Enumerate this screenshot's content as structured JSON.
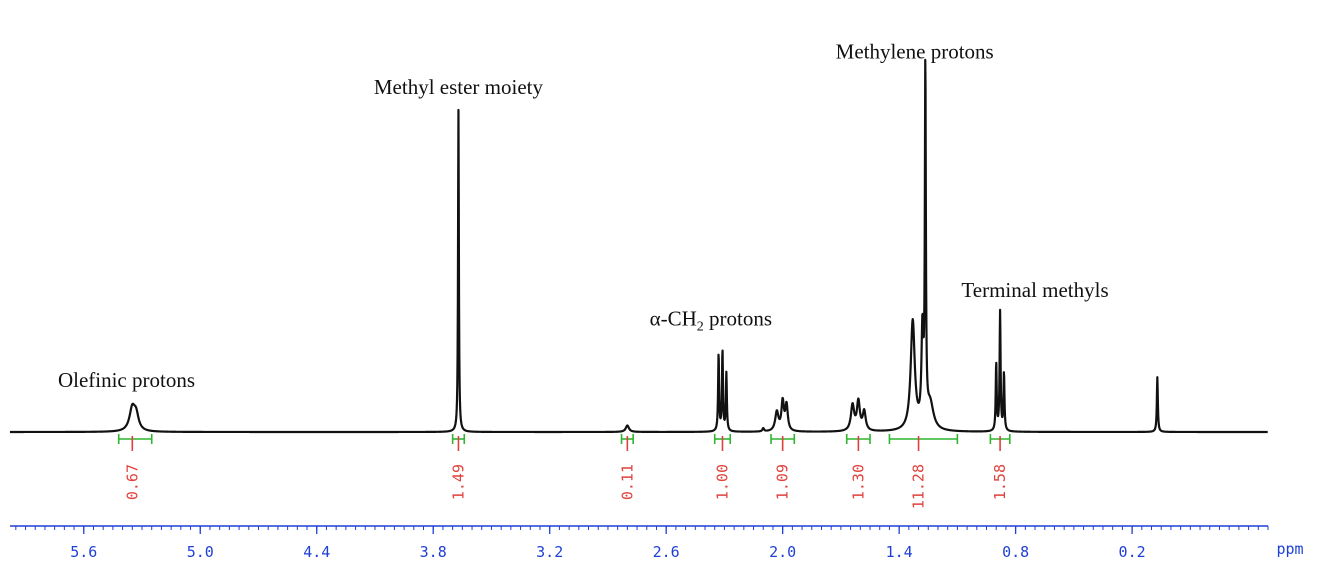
{
  "chart_data": {
    "type": "line",
    "title": "",
    "xlabel": "ppm",
    "ylabel": "",
    "xlim": [
      5.98,
      -0.5
    ],
    "x_reversed": true,
    "ticks": [
      "5.6",
      "5.0",
      "4.4",
      "3.8",
      "3.2",
      "2.6",
      "2.0",
      "1.4",
      "0.8",
      "0.2"
    ],
    "tick_values": [
      5.6,
      5.0,
      4.4,
      3.8,
      3.2,
      2.6,
      2.0,
      1.4,
      0.8,
      0.2
    ],
    "minor_tick_step": 0.05,
    "grid": false,
    "colors": {
      "trace": "#111111",
      "axis": "#1f3fd6",
      "integral_bracket": "#2fb52f",
      "integral_tick": "#e0413c",
      "integral_text": "#e0413c"
    },
    "peaks": [
      {
        "shift": 5.35,
        "height": 0.07,
        "width": 0.035
      },
      {
        "shift": 5.33,
        "height": 0.045,
        "width": 0.03
      },
      {
        "shift": 3.67,
        "height": 1.0,
        "width": 0.005
      },
      {
        "shift": 2.8,
        "height": 0.02,
        "width": 0.02
      },
      {
        "shift": 2.33,
        "height": 0.24,
        "width": 0.006
      },
      {
        "shift": 2.31,
        "height": 0.25,
        "width": 0.006
      },
      {
        "shift": 2.29,
        "height": 0.18,
        "width": 0.006
      },
      {
        "shift": 2.1,
        "height": 0.01,
        "width": 0.01
      },
      {
        "shift": 2.03,
        "height": 0.06,
        "width": 0.02
      },
      {
        "shift": 2.0,
        "height": 0.09,
        "width": 0.015
      },
      {
        "shift": 1.98,
        "height": 0.08,
        "width": 0.015
      },
      {
        "shift": 1.64,
        "height": 0.08,
        "width": 0.02
      },
      {
        "shift": 1.61,
        "height": 0.09,
        "width": 0.018
      },
      {
        "shift": 1.58,
        "height": 0.06,
        "width": 0.018
      },
      {
        "shift": 1.33,
        "height": 0.34,
        "width": 0.025
      },
      {
        "shift": 1.28,
        "height": 0.29,
        "width": 0.012
      },
      {
        "shift": 1.265,
        "height": 1.1,
        "width": 0.006
      },
      {
        "shift": 1.24,
        "height": 0.08,
        "width": 0.04
      },
      {
        "shift": 0.9,
        "height": 0.21,
        "width": 0.006
      },
      {
        "shift": 0.88,
        "height": 0.37,
        "width": 0.006
      },
      {
        "shift": 0.86,
        "height": 0.18,
        "width": 0.006
      },
      {
        "shift": 0.07,
        "height": 0.17,
        "width": 0.006
      }
    ],
    "integrals": [
      {
        "value": "0.67",
        "from": 5.42,
        "to": 5.25,
        "center": 5.35
      },
      {
        "value": "1.49",
        "from": 3.7,
        "to": 3.64,
        "center": 3.67
      },
      {
        "value": "0.11",
        "from": 2.83,
        "to": 2.77,
        "center": 2.8
      },
      {
        "value": "1.00",
        "from": 2.35,
        "to": 2.27,
        "center": 2.31
      },
      {
        "value": "1.09",
        "from": 2.06,
        "to": 1.94,
        "center": 2.0
      },
      {
        "value": "1.30",
        "from": 1.67,
        "to": 1.55,
        "center": 1.61
      },
      {
        "value": "11.28",
        "from": 1.45,
        "to": 1.1,
        "center": 1.3
      },
      {
        "value": "1.58",
        "from": 0.93,
        "to": 0.83,
        "center": 0.88
      }
    ],
    "annotations": [
      {
        "text": "Olefinic protons",
        "shift": 5.38,
        "level": 0.14
      },
      {
        "text": "Methyl ester moiety",
        "shift": 3.67,
        "level": 1.05
      },
      {
        "text": "α-CH",
        "sub": "2",
        "text_after": " protons",
        "shift": 2.37,
        "level": 0.33
      },
      {
        "text": "Methylene protons",
        "shift": 1.32,
        "level": 1.16
      },
      {
        "text": "Terminal methyls",
        "shift": 0.7,
        "level": 0.42
      }
    ]
  }
}
